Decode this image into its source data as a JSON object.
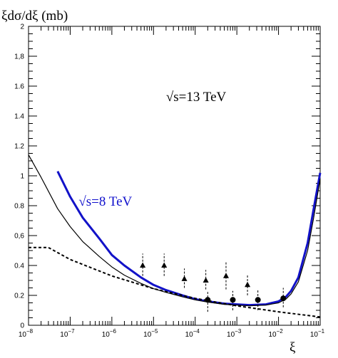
{
  "chart_data": {
    "type": "line",
    "title": "",
    "ylabel": "ξdσ/dξ (mb)",
    "xlabel": "ξ",
    "x_scale": "log",
    "xlim": [
      1e-08,
      0.1
    ],
    "ylim": [
      0,
      2
    ],
    "grid": false,
    "x_ticks": [
      {
        "value": 1e-08,
        "base": "10",
        "exp": "−8"
      },
      {
        "value": 1e-07,
        "base": "10",
        "exp": "−7"
      },
      {
        "value": 1e-06,
        "base": "10",
        "exp": "−6"
      },
      {
        "value": 1e-05,
        "base": "10",
        "exp": "−5"
      },
      {
        "value": 0.0001,
        "base": "10",
        "exp": "−4"
      },
      {
        "value": 0.001,
        "base": "10",
        "exp": "−3"
      },
      {
        "value": 0.01,
        "base": "10",
        "exp": "−2"
      },
      {
        "value": 0.1,
        "base": "10",
        "exp": "−1"
      }
    ],
    "y_ticks": [
      {
        "value": 0,
        "label": "0"
      },
      {
        "value": 0.2,
        "label": "0.2"
      },
      {
        "value": 0.4,
        "label": "0.4"
      },
      {
        "value": 0.6,
        "label": "0,6"
      },
      {
        "value": 0.8,
        "label": "0.8"
      },
      {
        "value": 1.0,
        "label": "1"
      },
      {
        "value": 1.2,
        "label": "1.2"
      },
      {
        "value": 1.4,
        "label": "1.4"
      },
      {
        "value": 1.6,
        "label": "1.6"
      },
      {
        "value": 1.8,
        "label": "1,8"
      },
      {
        "value": 2.0,
        "label": "2"
      }
    ],
    "annotations": [
      {
        "text": "√s=13 TeV",
        "x": 2e-05,
        "y": 1.5,
        "color": "#000000"
      },
      {
        "text": "√s=8 TeV",
        "x": 1.6e-07,
        "y": 0.8,
        "color": "#1010cc"
      }
    ],
    "series": [
      {
        "style": "solid-blue-thick",
        "color": "#1212c8",
        "points": [
          [
            5e-08,
            1.03
          ],
          [
            1e-07,
            0.86
          ],
          [
            2e-07,
            0.72
          ],
          [
            5e-07,
            0.58
          ],
          [
            1e-06,
            0.47
          ],
          [
            2e-06,
            0.4
          ],
          [
            5e-06,
            0.32
          ],
          [
            1e-05,
            0.27
          ],
          [
            2e-05,
            0.235
          ],
          [
            5e-05,
            0.2
          ],
          [
            0.0001,
            0.175
          ],
          [
            0.0002,
            0.16
          ],
          [
            0.0005,
            0.145
          ],
          [
            0.001,
            0.14
          ],
          [
            0.002,
            0.135
          ],
          [
            0.005,
            0.14
          ],
          [
            0.01,
            0.16
          ],
          [
            0.015,
            0.19
          ],
          [
            0.02,
            0.23
          ],
          [
            0.03,
            0.32
          ],
          [
            0.05,
            0.55
          ],
          [
            0.07,
            0.78
          ],
          [
            0.1,
            1.02
          ]
        ]
      },
      {
        "style": "solid-black-thin",
        "color": "#000000",
        "points": [
          [
            1e-08,
            1.14
          ],
          [
            2e-08,
            0.99
          ],
          [
            5e-08,
            0.78
          ],
          [
            1e-07,
            0.66
          ],
          [
            2e-07,
            0.56
          ],
          [
            5e-07,
            0.46
          ],
          [
            1e-06,
            0.39
          ],
          [
            2e-06,
            0.335
          ],
          [
            5e-06,
            0.28
          ],
          [
            1e-05,
            0.245
          ],
          [
            2e-05,
            0.22
          ],
          [
            5e-05,
            0.19
          ],
          [
            0.0001,
            0.17
          ],
          [
            0.0002,
            0.155
          ],
          [
            0.0005,
            0.14
          ],
          [
            0.001,
            0.135
          ],
          [
            0.002,
            0.13
          ],
          [
            0.005,
            0.135
          ],
          [
            0.01,
            0.15
          ],
          [
            0.015,
            0.175
          ],
          [
            0.02,
            0.21
          ],
          [
            0.03,
            0.29
          ],
          [
            0.05,
            0.5
          ],
          [
            0.07,
            0.72
          ],
          [
            0.1,
            0.98
          ]
        ]
      },
      {
        "style": "dashed-black",
        "color": "#000000",
        "points": [
          [
            1e-08,
            0.52
          ],
          [
            3e-08,
            0.52
          ],
          [
            1e-07,
            0.44
          ],
          [
            1e-06,
            0.33
          ],
          [
            1e-05,
            0.245
          ],
          [
            0.0001,
            0.18
          ],
          [
            0.001,
            0.13
          ],
          [
            0.01,
            0.09
          ],
          [
            0.1,
            0.055
          ]
        ]
      }
    ],
    "data_points": {
      "triangles": [
        {
          "x": 5.5e-06,
          "y": 0.4,
          "lo": 0.33,
          "hi": 0.48
        },
        {
          "x": 1.8e-05,
          "y": 0.4,
          "lo": 0.33,
          "hi": 0.48
        },
        {
          "x": 5.5e-05,
          "y": 0.31,
          "lo": 0.25,
          "hi": 0.38
        },
        {
          "x": 0.00018,
          "y": 0.3,
          "lo": 0.24,
          "hi": 0.37
        },
        {
          "x": 0.00055,
          "y": 0.33,
          "lo": 0.24,
          "hi": 0.43
        },
        {
          "x": 0.0018,
          "y": 0.27,
          "lo": 0.2,
          "hi": 0.34
        }
      ],
      "circles": [
        {
          "x": 0.0002,
          "y": 0.17,
          "lo": 0.09,
          "hi": 0.23
        },
        {
          "x": 0.0008,
          "y": 0.17,
          "lo": 0.1,
          "hi": 0.23
        },
        {
          "x": 0.0032,
          "y": 0.17,
          "lo": 0.1,
          "hi": 0.24
        },
        {
          "x": 0.013,
          "y": 0.18,
          "lo": 0.12,
          "hi": 0.25
        }
      ]
    }
  }
}
